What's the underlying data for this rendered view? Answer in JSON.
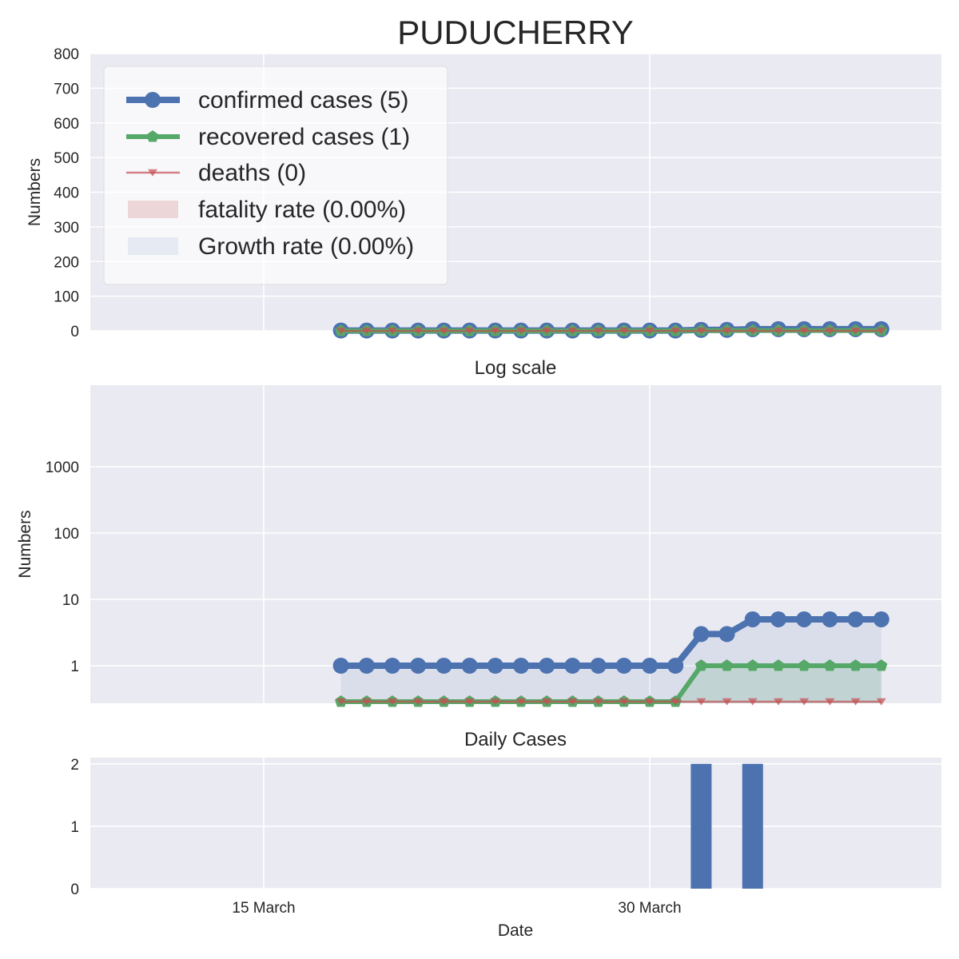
{
  "title": "PUDUCHERRY",
  "colors": {
    "confirmed": "#4c72b0",
    "recovered": "#55a868",
    "deaths": "#c44e52",
    "panel_bg": "#eaeaf2",
    "grid": "#ffffff"
  },
  "x_axis": {
    "label": "Date",
    "ticks": [
      "15 March",
      "30 March"
    ]
  },
  "legend": [
    {
      "label": "confirmed cases (5)",
      "kind": "line-circle",
      "color": "#4c72b0"
    },
    {
      "label": "recovered cases (1)",
      "kind": "line-pentagon",
      "color": "#55a868"
    },
    {
      "label": "deaths (0)",
      "kind": "line-triangle",
      "color": "#c44e52"
    },
    {
      "label": "fatality rate (0.00%)",
      "kind": "patch",
      "color": "#c44e52"
    },
    {
      "label": "Growth rate (0.00%)",
      "kind": "patch",
      "color": "#4c72b0"
    }
  ],
  "chart_data": [
    {
      "type": "line",
      "ylabel": "Numbers",
      "ylim": [
        0,
        800
      ],
      "yticks": [
        "0",
        "100",
        "200",
        "300",
        "400",
        "500",
        "600",
        "700",
        "800"
      ],
      "x": [
        "2020-03-18",
        "2020-03-19",
        "2020-03-20",
        "2020-03-21",
        "2020-03-22",
        "2020-03-23",
        "2020-03-24",
        "2020-03-25",
        "2020-03-26",
        "2020-03-27",
        "2020-03-28",
        "2020-03-29",
        "2020-03-30",
        "2020-03-31",
        "2020-04-01",
        "2020-04-02",
        "2020-04-03",
        "2020-04-04",
        "2020-04-05",
        "2020-04-06",
        "2020-04-07",
        "2020-04-08"
      ],
      "series": [
        {
          "name": "confirmed cases (5)",
          "values": [
            1,
            1,
            1,
            1,
            1,
            1,
            1,
            1,
            1,
            1,
            1,
            1,
            1,
            1,
            3,
            3,
            5,
            5,
            5,
            5,
            5,
            5
          ]
        },
        {
          "name": "recovered cases (1)",
          "values": [
            0,
            0,
            0,
            0,
            0,
            0,
            0,
            0,
            0,
            0,
            0,
            0,
            0,
            0,
            1,
            1,
            1,
            1,
            1,
            1,
            1,
            1
          ]
        },
        {
          "name": "deaths (0)",
          "values": [
            0,
            0,
            0,
            0,
            0,
            0,
            0,
            0,
            0,
            0,
            0,
            0,
            0,
            0,
            0,
            0,
            0,
            0,
            0,
            0,
            0,
            0
          ]
        }
      ]
    },
    {
      "type": "line",
      "title": "Log scale",
      "ylabel": "Numbers",
      "yscale": "log",
      "yticks": [
        "1",
        "10",
        "100",
        "1000"
      ],
      "x": [
        "2020-03-18",
        "2020-03-19",
        "2020-03-20",
        "2020-03-21",
        "2020-03-22",
        "2020-03-23",
        "2020-03-24",
        "2020-03-25",
        "2020-03-26",
        "2020-03-27",
        "2020-03-28",
        "2020-03-29",
        "2020-03-30",
        "2020-03-31",
        "2020-04-01",
        "2020-04-02",
        "2020-04-03",
        "2020-04-04",
        "2020-04-05",
        "2020-04-06",
        "2020-04-07",
        "2020-04-08"
      ],
      "series": [
        {
          "name": "confirmed cases (5)",
          "values": [
            1,
            1,
            1,
            1,
            1,
            1,
            1,
            1,
            1,
            1,
            1,
            1,
            1,
            1,
            3,
            3,
            5,
            5,
            5,
            5,
            5,
            5
          ]
        },
        {
          "name": "recovered cases (1)",
          "values": [
            0,
            0,
            0,
            0,
            0,
            0,
            0,
            0,
            0,
            0,
            0,
            0,
            0,
            0,
            1,
            1,
            1,
            1,
            1,
            1,
            1,
            1
          ]
        },
        {
          "name": "deaths (0)",
          "values": [
            0,
            0,
            0,
            0,
            0,
            0,
            0,
            0,
            0,
            0,
            0,
            0,
            0,
            0,
            0,
            0,
            0,
            0,
            0,
            0,
            0,
            0
          ]
        }
      ]
    },
    {
      "type": "bar",
      "title": "Daily Cases",
      "ylim": [
        0,
        2.1
      ],
      "yticks": [
        "0",
        "1",
        "2"
      ],
      "x": [
        "2020-04-01",
        "2020-04-03"
      ],
      "values": [
        2,
        2
      ]
    }
  ]
}
